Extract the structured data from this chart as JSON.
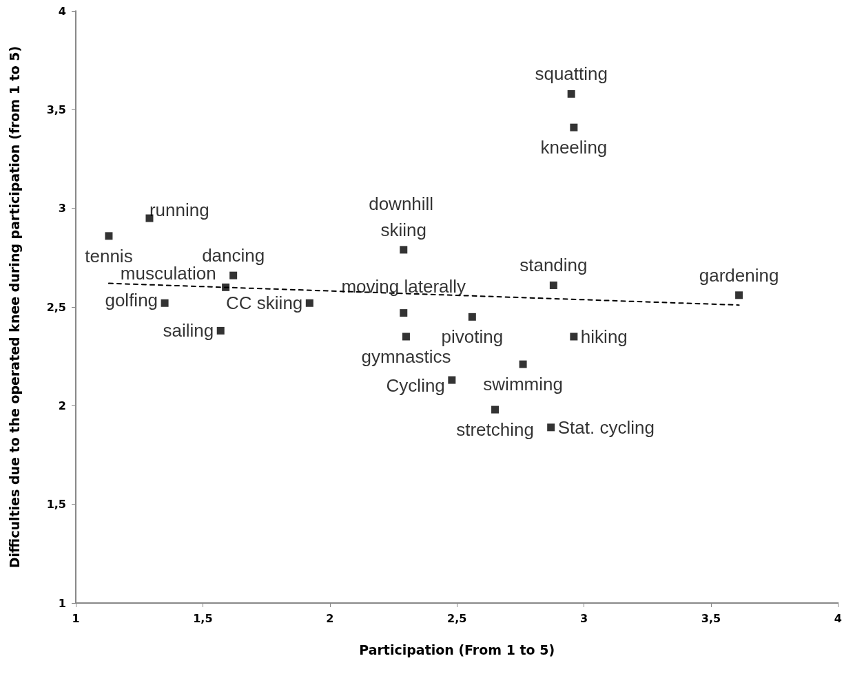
{
  "chart_data": {
    "type": "scatter",
    "xlabel": "Participation (From 1 to 5)",
    "ylabel": "Difficulties due to the operated knee during participation (from 1 to 5)",
    "xlim": [
      1,
      4
    ],
    "ylim": [
      1,
      4
    ],
    "xticks": [
      {
        "value": 1,
        "label": "1"
      },
      {
        "value": 1.5,
        "label": "1,5"
      },
      {
        "value": 2,
        "label": "2"
      },
      {
        "value": 2.5,
        "label": "2,5"
      },
      {
        "value": 3,
        "label": "3"
      },
      {
        "value": 3.5,
        "label": "3,5"
      },
      {
        "value": 4,
        "label": "4"
      }
    ],
    "yticks": [
      {
        "value": 1,
        "label": "1"
      },
      {
        "value": 1.5,
        "label": "1,5"
      },
      {
        "value": 2,
        "label": "2"
      },
      {
        "value": 2.5,
        "label": "2,5"
      },
      {
        "value": 3,
        "label": "3"
      },
      {
        "value": 3.5,
        "label": "3,5"
      },
      {
        "value": 4,
        "label": "4"
      }
    ],
    "grid": false,
    "marker": "square",
    "series": [
      {
        "color": "#000000",
        "x": [
          1.13,
          1.29,
          1.35,
          1.59,
          1.62,
          1.57,
          1.92,
          2.29,
          2.29,
          2.3,
          2.48,
          2.56,
          2.65,
          2.76,
          2.88,
          2.87,
          2.95,
          2.96,
          2.96,
          3.61
        ],
        "values": [
          2.86,
          2.95,
          2.52,
          2.6,
          2.66,
          2.38,
          2.52,
          2.79,
          2.47,
          2.35,
          2.13,
          2.45,
          1.98,
          2.21,
          2.61,
          1.89,
          3.58,
          3.41,
          2.35,
          2.56
        ]
      },
      {
        "type": "line",
        "color": "#000000",
        "line_style": "dashed",
        "marker": "none",
        "x": [
          1.13,
          3.61
        ],
        "values": [
          2.62,
          2.51
        ]
      }
    ],
    "annotations": [
      {
        "text": "tennis",
        "x": 1.13,
        "y": 2.86
      },
      {
        "text": "running",
        "x": 1.29,
        "y": 2.95
      },
      {
        "text": "golfing",
        "x": 1.35,
        "y": 2.52
      },
      {
        "text": "musculation",
        "x": 1.59,
        "y": 2.6
      },
      {
        "text": "dancing",
        "x": 1.62,
        "y": 2.66
      },
      {
        "text": "sailing",
        "x": 1.57,
        "y": 2.38
      },
      {
        "text": "CC skiing",
        "x": 1.92,
        "y": 2.52
      },
      {
        "text": "downhill skiing",
        "x": 2.29,
        "y": 2.79
      },
      {
        "text": "moving laterally",
        "x": 2.29,
        "y": 2.47
      },
      {
        "text": "gymnastics",
        "x": 2.3,
        "y": 2.35
      },
      {
        "text": "Cycling",
        "x": 2.48,
        "y": 2.13
      },
      {
        "text": "pivoting",
        "x": 2.56,
        "y": 2.45
      },
      {
        "text": "stretching",
        "x": 2.65,
        "y": 1.98
      },
      {
        "text": "swimming",
        "x": 2.76,
        "y": 2.21
      },
      {
        "text": "standing",
        "x": 2.88,
        "y": 2.61
      },
      {
        "text": "Stat. cycling",
        "x": 2.87,
        "y": 1.89
      },
      {
        "text": "squatting",
        "x": 2.95,
        "y": 3.58
      },
      {
        "text": "kneeling",
        "x": 2.96,
        "y": 3.41
      },
      {
        "text": "hiking",
        "x": 2.96,
        "y": 2.35
      },
      {
        "text": "gardening",
        "x": 3.61,
        "y": 2.56
      }
    ]
  }
}
